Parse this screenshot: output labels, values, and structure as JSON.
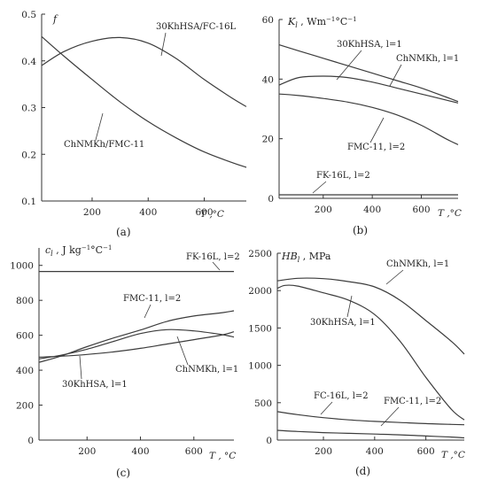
{
  "chart_data": [
    {
      "id": "a",
      "type": "line",
      "panel_label": "(a)",
      "ylabel": "f",
      "xlabel": "T ,°C",
      "xlim": [
        20,
        750
      ],
      "ylim": [
        0.1,
        0.5
      ],
      "xticks": [
        200,
        400,
        600
      ],
      "yticks": [
        0.1,
        0.2,
        0.3,
        0.4,
        0.5
      ],
      "yticks_text": [
        "0.1",
        "0.2",
        "0.3",
        "0.4",
        "0.5"
      ],
      "series": [
        {
          "name": "30KhHSA/FC-16L",
          "x": [
            20,
            100,
            200,
            300,
            400,
            500,
            600,
            700,
            750
          ],
          "y": [
            0.39,
            0.42,
            0.442,
            0.45,
            0.438,
            0.405,
            0.36,
            0.32,
            0.302
          ]
        },
        {
          "name": "ChNMKh/FMC-11",
          "x": [
            20,
            100,
            200,
            300,
            400,
            500,
            600,
            700,
            750
          ],
          "y": [
            0.452,
            0.41,
            0.36,
            0.312,
            0.27,
            0.235,
            0.205,
            0.182,
            0.172
          ]
        }
      ]
    },
    {
      "id": "b",
      "type": "line",
      "panel_label": "(b)",
      "ylabel_main": "K",
      "ylabel_sub": "l",
      "ylabel_unit": " , Wm",
      "ylabel_sup": "−1",
      "ylabel_unit2": "°C",
      "ylabel_sup2": "−1",
      "xlabel": "T ,°C",
      "xlim": [
        20,
        750
      ],
      "ylim": [
        0,
        60
      ],
      "xticks": [
        200,
        400,
        600
      ],
      "yticks": [
        0,
        20,
        40,
        60
      ],
      "yticks_text": [
        "0",
        "20",
        "40",
        "60"
      ],
      "series": [
        {
          "name": "30KhHSA, l=1",
          "x": [
            20,
            100,
            200,
            300,
            400,
            500,
            600,
            700,
            750
          ],
          "y": [
            51.5,
            49.5,
            47,
            44.5,
            42,
            39.5,
            37,
            34,
            32.5
          ]
        },
        {
          "name": "ChNMKh, l=1",
          "x": [
            20,
            100,
            200,
            300,
            400,
            500,
            600,
            700,
            750
          ],
          "y": [
            38,
            40.5,
            41,
            40.5,
            39,
            37,
            35,
            33,
            32
          ]
        },
        {
          "name": "FMC-11, l=2",
          "x": [
            20,
            100,
            200,
            300,
            400,
            500,
            600,
            700,
            750
          ],
          "y": [
            35,
            34.5,
            33.5,
            32.3,
            30.5,
            28,
            24.5,
            20,
            18
          ]
        },
        {
          "name": "FK-16L, l=2",
          "x": [
            20,
            750
          ],
          "y": [
            1.2,
            1.2
          ]
        }
      ]
    },
    {
      "id": "c",
      "type": "line",
      "panel_label": "(c)",
      "ylabel_main": "c",
      "ylabel_sub": "l",
      "ylabel_unit": " , J kg",
      "ylabel_sup": "−1",
      "ylabel_unit2": "°C",
      "ylabel_sup2": "−1",
      "xlabel": "T , °C",
      "xlim": [
        20,
        750
      ],
      "ylim": [
        0,
        1100
      ],
      "xticks": [
        200,
        400,
        600
      ],
      "yticks": [
        0,
        200,
        400,
        600,
        800,
        1000
      ],
      "yticks_text": [
        "0",
        "200",
        "400",
        "600",
        "800",
        "1000"
      ],
      "series": [
        {
          "name": "FK-16L, l=2",
          "x": [
            20,
            750
          ],
          "y": [
            965,
            965
          ]
        },
        {
          "name": "FMC-11, l=2",
          "x": [
            20,
            100,
            200,
            300,
            400,
            500,
            600,
            700,
            750
          ],
          "y": [
            445,
            480,
            535,
            585,
            630,
            680,
            710,
            728,
            740
          ]
        },
        {
          "name": "ChNMKh, l=1",
          "x": [
            20,
            100,
            200,
            300,
            400,
            500,
            600,
            700,
            750
          ],
          "y": [
            465,
            485,
            520,
            565,
            610,
            632,
            625,
            605,
            590
          ]
        },
        {
          "name": "30KhHSA, l=1",
          "x": [
            20,
            100,
            200,
            300,
            400,
            500,
            600,
            700,
            750
          ],
          "y": [
            475,
            480,
            490,
            505,
            525,
            550,
            575,
            600,
            620
          ]
        }
      ]
    },
    {
      "id": "d",
      "type": "line",
      "panel_label": "(d)",
      "ylabel_main": "HB",
      "ylabel_sub": "l",
      "ylabel_unit": " , MPa",
      "ylabel_sup": "",
      "ylabel_unit2": "",
      "ylabel_sup2": "",
      "xlabel": "T ,°C",
      "xlim": [
        20,
        750
      ],
      "ylim": [
        0,
        2500
      ],
      "xticks": [
        200,
        400,
        600
      ],
      "yticks": [
        0,
        500,
        1000,
        1500,
        2000,
        2500
      ],
      "yticks_text": [
        "0",
        "500",
        "1000",
        "1500",
        "2000",
        "2500"
      ],
      "series": [
        {
          "name": "ChNMKh, l=1",
          "x": [
            20,
            100,
            200,
            300,
            400,
            500,
            600,
            700,
            750
          ],
          "y": [
            2130,
            2165,
            2160,
            2120,
            2050,
            1870,
            1600,
            1320,
            1150
          ]
        },
        {
          "name": "30KhHSA, l=1",
          "x": [
            20,
            50,
            100,
            200,
            300,
            400,
            500,
            600,
            700,
            750
          ],
          "y": [
            2030,
            2070,
            2060,
            1970,
            1870,
            1680,
            1320,
            840,
            410,
            270
          ]
        },
        {
          "name": "FC-16L, l=2",
          "x": [
            20,
            100,
            200,
            300,
            400,
            500,
            600,
            700,
            750
          ],
          "y": [
            380,
            340,
            300,
            270,
            250,
            235,
            220,
            210,
            205
          ]
        },
        {
          "name": "FMC-11, l=2",
          "x": [
            20,
            100,
            200,
            300,
            400,
            500,
            600,
            700,
            750
          ],
          "y": [
            130,
            115,
            100,
            90,
            80,
            70,
            55,
            40,
            30
          ]
        }
      ]
    }
  ]
}
